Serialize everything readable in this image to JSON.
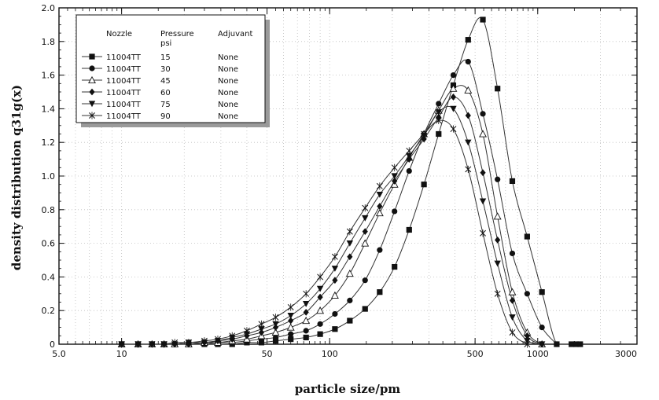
{
  "chart_data": {
    "type": "line",
    "xlabel": "particle size/pm",
    "ylabel": "density distribution q31g(x)",
    "x_scale": "log",
    "xlim": [
      5,
      3000
    ],
    "ylim": [
      0,
      2.0
    ],
    "x_ticks": [
      {
        "value": 5,
        "label": "5.0"
      },
      {
        "value": 10,
        "label": "10"
      },
      {
        "value": 50,
        "label": "50"
      },
      {
        "value": 100,
        "label": "100"
      },
      {
        "value": 500,
        "label": "500"
      },
      {
        "value": 1000,
        "label": "1000"
      },
      {
        "value": 3000,
        "label": "3000"
      }
    ],
    "y_ticks": [
      "0",
      "0.2",
      "0.4",
      "0.6",
      "0.8",
      "1.0",
      "1.2",
      "1.4",
      "1.6",
      "1.8",
      "2.0"
    ],
    "grid": true,
    "legend_position": "top-left",
    "legend": {
      "headers": [
        "Nozzle",
        "Pressure",
        "Adjuvant"
      ],
      "subheader": "psi"
    },
    "series": [
      {
        "marker": "square",
        "nozzle": "11004TT",
        "pressure": "15",
        "adjuvant": "None",
        "points": [
          [
            10,
            0
          ],
          [
            12,
            0
          ],
          [
            14,
            0
          ],
          [
            16,
            0
          ],
          [
            18,
            0
          ],
          [
            21,
            0
          ],
          [
            25,
            0
          ],
          [
            29,
            0
          ],
          [
            34,
            0
          ],
          [
            40,
            0.01
          ],
          [
            47,
            0.01
          ],
          [
            55,
            0.02
          ],
          [
            65,
            0.03
          ],
          [
            77,
            0.04
          ],
          [
            90,
            0.06
          ],
          [
            106,
            0.09
          ],
          [
            125,
            0.14
          ],
          [
            148,
            0.21
          ],
          [
            174,
            0.31
          ],
          [
            205,
            0.46
          ],
          [
            241,
            0.68
          ],
          [
            284,
            0.95
          ],
          [
            334,
            1.25
          ],
          [
            393,
            1.54
          ],
          [
            463,
            1.81
          ],
          [
            545,
            1.93
          ],
          [
            641,
            1.52
          ],
          [
            755,
            0.97
          ],
          [
            890,
            0.64
          ],
          [
            1048,
            0.31
          ],
          [
            1234,
            0
          ],
          [
            1453,
            0
          ],
          [
            1530,
            0
          ],
          [
            1600,
            0
          ]
        ]
      },
      {
        "marker": "circle",
        "nozzle": "11004TT",
        "pressure": "30",
        "adjuvant": "None",
        "points": [
          [
            10,
            0
          ],
          [
            12,
            0
          ],
          [
            14,
            0
          ],
          [
            16,
            0
          ],
          [
            18,
            0
          ],
          [
            21,
            0
          ],
          [
            25,
            0
          ],
          [
            29,
            0.01
          ],
          [
            34,
            0.01
          ],
          [
            40,
            0.02
          ],
          [
            47,
            0.03
          ],
          [
            55,
            0.04
          ],
          [
            65,
            0.06
          ],
          [
            77,
            0.08
          ],
          [
            90,
            0.12
          ],
          [
            106,
            0.18
          ],
          [
            125,
            0.26
          ],
          [
            148,
            0.38
          ],
          [
            174,
            0.56
          ],
          [
            205,
            0.79
          ],
          [
            241,
            1.03
          ],
          [
            284,
            1.25
          ],
          [
            334,
            1.43
          ],
          [
            393,
            1.6
          ],
          [
            463,
            1.68
          ],
          [
            545,
            1.37
          ],
          [
            641,
            0.98
          ],
          [
            755,
            0.54
          ],
          [
            890,
            0.3
          ],
          [
            1048,
            0.1
          ],
          [
            1234,
            0
          ]
        ]
      },
      {
        "marker": "triangle",
        "nozzle": "11004TT",
        "pressure": "45",
        "adjuvant": "None",
        "points": [
          [
            10,
            0
          ],
          [
            12,
            0
          ],
          [
            14,
            0
          ],
          [
            16,
            0
          ],
          [
            18,
            0
          ],
          [
            21,
            0
          ],
          [
            25,
            0.01
          ],
          [
            29,
            0.01
          ],
          [
            34,
            0.02
          ],
          [
            40,
            0.03
          ],
          [
            47,
            0.05
          ],
          [
            55,
            0.07
          ],
          [
            65,
            0.1
          ],
          [
            77,
            0.14
          ],
          [
            90,
            0.2
          ],
          [
            106,
            0.29
          ],
          [
            125,
            0.42
          ],
          [
            148,
            0.6
          ],
          [
            174,
            0.78
          ],
          [
            205,
            0.95
          ],
          [
            241,
            1.11
          ],
          [
            284,
            1.25
          ],
          [
            334,
            1.39
          ],
          [
            393,
            1.52
          ],
          [
            463,
            1.51
          ],
          [
            545,
            1.25
          ],
          [
            641,
            0.76
          ],
          [
            755,
            0.31
          ],
          [
            890,
            0.07
          ],
          [
            1048,
            0
          ]
        ]
      },
      {
        "marker": "diamond",
        "nozzle": "11004TT",
        "pressure": "60",
        "adjuvant": "None",
        "points": [
          [
            10,
            0
          ],
          [
            12,
            0
          ],
          [
            14,
            0
          ],
          [
            16,
            0
          ],
          [
            18,
            0
          ],
          [
            21,
            0
          ],
          [
            25,
            0.01
          ],
          [
            29,
            0.02
          ],
          [
            34,
            0.03
          ],
          [
            40,
            0.05
          ],
          [
            47,
            0.07
          ],
          [
            55,
            0.1
          ],
          [
            65,
            0.14
          ],
          [
            77,
            0.19
          ],
          [
            90,
            0.28
          ],
          [
            106,
            0.38
          ],
          [
            125,
            0.52
          ],
          [
            148,
            0.67
          ],
          [
            174,
            0.82
          ],
          [
            205,
            0.97
          ],
          [
            241,
            1.1
          ],
          [
            284,
            1.22
          ],
          [
            334,
            1.35
          ],
          [
            393,
            1.47
          ],
          [
            463,
            1.36
          ],
          [
            545,
            1.02
          ],
          [
            641,
            0.62
          ],
          [
            755,
            0.26
          ],
          [
            890,
            0.05
          ],
          [
            1048,
            0
          ]
        ]
      },
      {
        "marker": "triangle-down",
        "nozzle": "11004TT",
        "pressure": "75",
        "adjuvant": "None",
        "points": [
          [
            10,
            0
          ],
          [
            12,
            0
          ],
          [
            14,
            0
          ],
          [
            16,
            0
          ],
          [
            18,
            0
          ],
          [
            21,
            0.01
          ],
          [
            25,
            0.01
          ],
          [
            29,
            0.02
          ],
          [
            34,
            0.04
          ],
          [
            40,
            0.06
          ],
          [
            47,
            0.09
          ],
          [
            55,
            0.12
          ],
          [
            65,
            0.17
          ],
          [
            77,
            0.24
          ],
          [
            90,
            0.33
          ],
          [
            106,
            0.45
          ],
          [
            125,
            0.6
          ],
          [
            148,
            0.75
          ],
          [
            174,
            0.89
          ],
          [
            205,
            1.0
          ],
          [
            241,
            1.12
          ],
          [
            284,
            1.24
          ],
          [
            334,
            1.38
          ],
          [
            393,
            1.4
          ],
          [
            463,
            1.2
          ],
          [
            545,
            0.85
          ],
          [
            641,
            0.48
          ],
          [
            755,
            0.16
          ],
          [
            890,
            0.02
          ],
          [
            1048,
            0
          ]
        ]
      },
      {
        "marker": "x",
        "nozzle": "11004TT",
        "pressure": "90",
        "adjuvant": "None",
        "points": [
          [
            10,
            0
          ],
          [
            12,
            0
          ],
          [
            14,
            0
          ],
          [
            16,
            0
          ],
          [
            18,
            0.01
          ],
          [
            21,
            0.01
          ],
          [
            25,
            0.02
          ],
          [
            29,
            0.03
          ],
          [
            34,
            0.05
          ],
          [
            40,
            0.08
          ],
          [
            47,
            0.12
          ],
          [
            55,
            0.16
          ],
          [
            65,
            0.22
          ],
          [
            77,
            0.3
          ],
          [
            90,
            0.4
          ],
          [
            106,
            0.52
          ],
          [
            125,
            0.67
          ],
          [
            148,
            0.81
          ],
          [
            174,
            0.94
          ],
          [
            205,
            1.05
          ],
          [
            241,
            1.15
          ],
          [
            284,
            1.25
          ],
          [
            334,
            1.33
          ],
          [
            393,
            1.28
          ],
          [
            463,
            1.04
          ],
          [
            545,
            0.66
          ],
          [
            641,
            0.3
          ],
          [
            755,
            0.07
          ],
          [
            890,
            0
          ]
        ]
      }
    ]
  }
}
